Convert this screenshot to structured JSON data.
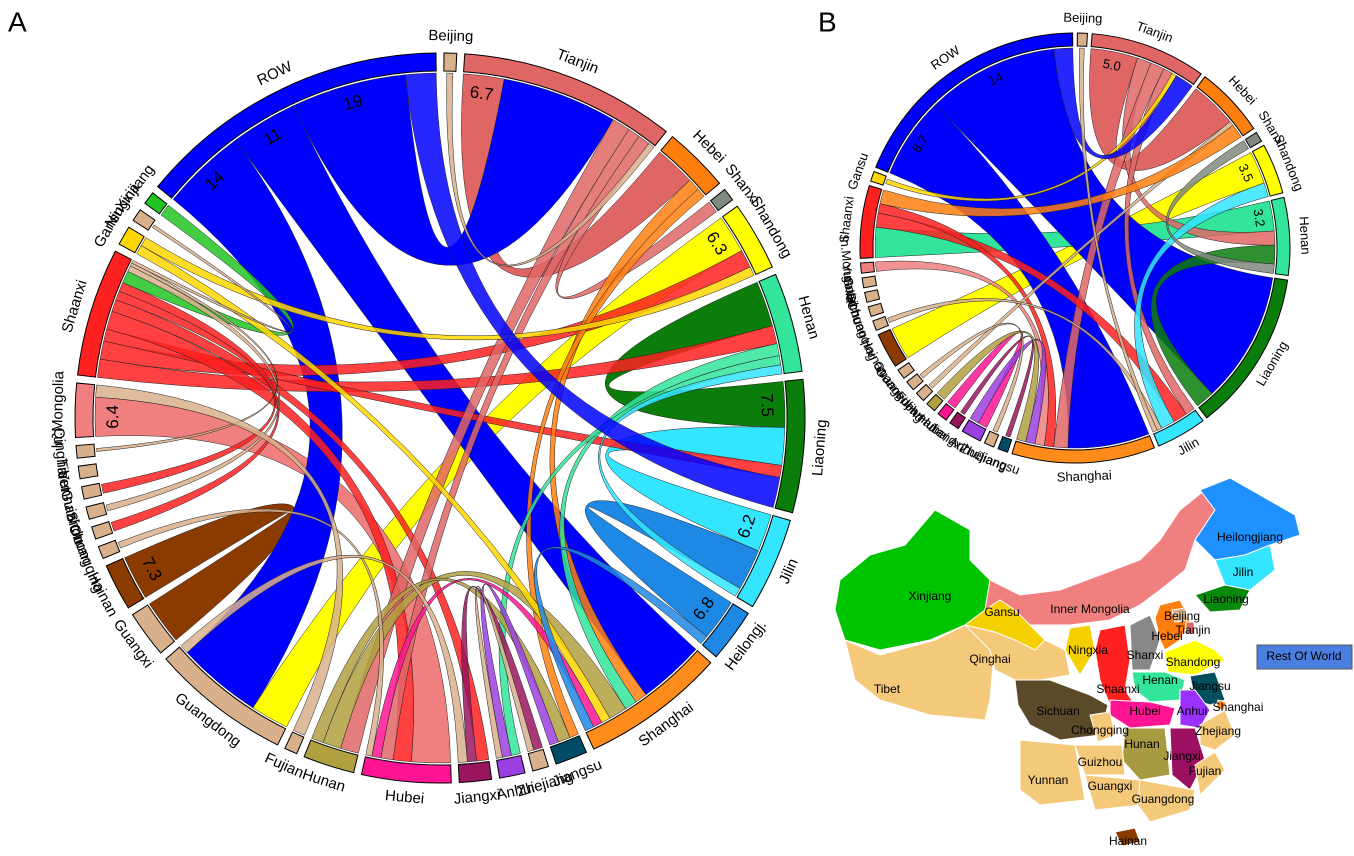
{
  "chart_data": [
    {
      "type": "chord",
      "label": "A",
      "segments": [
        {
          "name": "Beijing",
          "color": "#d9b08c"
        },
        {
          "name": "Tianjin",
          "color": "#e06666"
        },
        {
          "name": "Hebei",
          "color": "#ff7f0e"
        },
        {
          "name": "Shanxi",
          "color": "#808a80"
        },
        {
          "name": "Shandong",
          "color": "#ffff00"
        },
        {
          "name": "Henan",
          "color": "#33e59a"
        },
        {
          "name": "Liaoning",
          "color": "#0a7d0a"
        },
        {
          "name": "Jilin",
          "color": "#33e5ff"
        },
        {
          "name": "Heilongj.",
          "color": "#1e88e5"
        },
        {
          "name": "Shanghai",
          "color": "#ff8c1a"
        },
        {
          "name": "Jiangsu",
          "color": "#004c66"
        },
        {
          "name": "Zhejiang",
          "color": "#d9b08c"
        },
        {
          "name": "Anhui",
          "color": "#9b40e0"
        },
        {
          "name": "Jiangxi",
          "color": "#99155e"
        },
        {
          "name": "Hubei",
          "color": "#ff1493"
        },
        {
          "name": "Hunan",
          "color": "#b0a040"
        },
        {
          "name": "Fujian",
          "color": "#d9b08c"
        },
        {
          "name": "Guangdong",
          "color": "#d9b08c"
        },
        {
          "name": "Guangxi",
          "color": "#d9b08c"
        },
        {
          "name": "Hainan",
          "color": "#8b3a00"
        },
        {
          "name": "Chongqing",
          "color": "#d9b08c"
        },
        {
          "name": "Sichuan",
          "color": "#d9b08c"
        },
        {
          "name": "Guizhou",
          "color": "#d9b08c"
        },
        {
          "name": "Yunnan",
          "color": "#d9b08c"
        },
        {
          "name": "Tibet",
          "color": "#d9b08c"
        },
        {
          "name": "Qinghai",
          "color": "#d9b08c"
        },
        {
          "name": "In.Mongolia",
          "color": "#f08080"
        },
        {
          "name": "Shaanxi",
          "color": "#ff2020"
        },
        {
          "name": "Gansu",
          "color": "#ffd700"
        },
        {
          "name": "Ningxia",
          "color": "#d9b08c"
        },
        {
          "name": "Xinjiang",
          "color": "#22c422"
        },
        {
          "name": "ROW",
          "color": "#0000ff"
        }
      ],
      "labeled_flows": [
        {
          "source": "Tianjin",
          "target": "Hebei",
          "value": 6.7
        },
        {
          "source": "Shandong",
          "target": "Guangdong",
          "value": 6.3
        },
        {
          "source": "Liaoning",
          "target": "Henan",
          "value": 7.5
        },
        {
          "source": "Jilin",
          "target": "Liaoning",
          "value": 6.2
        },
        {
          "source": "Heilongj.",
          "target": "Jilin",
          "value": 6.8
        },
        {
          "source": "Hainan",
          "target": "Guangxi",
          "value": 7.3
        },
        {
          "source": "In.Mongolia",
          "target": "Hubei",
          "value": 6.4
        },
        {
          "source": "ROW",
          "target": "Guangdong",
          "value": 14
        },
        {
          "source": "ROW",
          "target": "Shanghai",
          "value": 11
        },
        {
          "source": "ROW",
          "target": "Tianjin",
          "value": 19
        }
      ],
      "flows": [
        {
          "source": "Shaanxi",
          "target": "Henan",
          "value": 3
        },
        {
          "source": "Shaanxi",
          "target": "Shandong",
          "value": 3
        },
        {
          "source": "Shaanxi",
          "target": "Liaoning",
          "value": 2
        },
        {
          "source": "Shaanxi",
          "target": "Hubei",
          "value": 3
        },
        {
          "source": "Shaanxi",
          "target": "Jiangxi",
          "value": 2
        },
        {
          "source": "Shaanxi",
          "target": "Yunnan",
          "value": 1.5
        },
        {
          "source": "Shaanxi",
          "target": "Sichuan",
          "value": 1.5
        },
        {
          "source": "Tianjin",
          "target": "Hunan",
          "value": 3
        },
        {
          "source": "Tianjin",
          "target": "Hubei",
          "value": 2
        },
        {
          "source": "Tianjin",
          "target": "Shanxi",
          "value": 2
        },
        {
          "source": "Hebei",
          "target": "Shanghai",
          "value": 2
        },
        {
          "source": "Hebei",
          "target": "Jiangsu",
          "value": 1.5
        },
        {
          "source": "Henan",
          "target": "Shanghai",
          "value": 2
        },
        {
          "source": "Henan",
          "target": "Anhui",
          "value": 1.5
        },
        {
          "source": "Hunan",
          "target": "Shanghai",
          "value": 3
        },
        {
          "source": "Hunan",
          "target": "Jiangsu",
          "value": 2
        },
        {
          "source": "Xinjiang",
          "target": "Shaanxi",
          "value": 2
        },
        {
          "source": "Gansu",
          "target": "Shanghai",
          "value": 1.5
        },
        {
          "source": "Gansu",
          "target": "Shandong",
          "value": 1.5
        },
        {
          "source": "Jiangxi",
          "target": "Zhejiang",
          "value": 1.5
        },
        {
          "source": "Anhui",
          "target": "Jiangsu",
          "value": 1.5
        },
        {
          "source": "Hubei",
          "target": "Shanghai",
          "value": 1.5
        },
        {
          "source": "Chongqing",
          "target": "Hubei",
          "value": 1
        },
        {
          "source": "Guizhou",
          "target": "Shaanxi",
          "value": 1
        },
        {
          "source": "Qinghai",
          "target": "Shaanxi",
          "value": 0.5
        },
        {
          "source": "Ningxia",
          "target": "Shaanxi",
          "value": 0.5
        },
        {
          "source": "Beijing",
          "target": "Tianjin",
          "value": 1
        },
        {
          "source": "Fujian",
          "target": "In.Mongolia",
          "value": 2
        },
        {
          "source": "Guangdong",
          "target": "Jiangxi",
          "value": 1.5
        },
        {
          "source": "Zhejiang",
          "target": "Anhui",
          "value": 1
        },
        {
          "source": "Heilongj.",
          "target": "Shanghai",
          "value": 1.5
        },
        {
          "source": "Jilin",
          "target": "Henan",
          "value": 1.5
        },
        {
          "source": "ROW",
          "target": "Liaoning",
          "value": 5
        }
      ]
    },
    {
      "type": "chord",
      "label": "B",
      "segments": [
        {
          "name": "Beijing",
          "color": "#d9b08c"
        },
        {
          "name": "Tianjin",
          "color": "#e06666"
        },
        {
          "name": "Hebei",
          "color": "#ff7f0e"
        },
        {
          "name": "Shanxi",
          "color": "#808a80"
        },
        {
          "name": "Shandong",
          "color": "#ffff00"
        },
        {
          "name": "Henan",
          "color": "#33e59a"
        },
        {
          "name": "Liaoning",
          "color": "#0a7d0a"
        },
        {
          "name": "Jilin",
          "color": "#33e5ff"
        },
        {
          "name": "Shanghai",
          "color": "#ff8c1a"
        },
        {
          "name": "Jiangsu",
          "color": "#004c66"
        },
        {
          "name": "Zhejiang",
          "color": "#d9b08c"
        },
        {
          "name": "Anhui",
          "color": "#9b40e0"
        },
        {
          "name": "Jiangxi",
          "color": "#99155e"
        },
        {
          "name": "Hubei",
          "color": "#ff1493"
        },
        {
          "name": "Hunan",
          "color": "#b0a040"
        },
        {
          "name": "Fujian",
          "color": "#d9b08c"
        },
        {
          "name": "Guangdong",
          "color": "#d9b08c"
        },
        {
          "name": "Guangxi",
          "color": "#d9b08c"
        },
        {
          "name": "Hainan",
          "color": "#8b3a00"
        },
        {
          "name": "Chongqing",
          "color": "#d9b08c"
        },
        {
          "name": "Sichuan",
          "color": "#d9b08c"
        },
        {
          "name": "Guizhou",
          "color": "#d9b08c"
        },
        {
          "name": "Yunnan",
          "color": "#d9b08c"
        },
        {
          "name": "In.Mongolia",
          "color": "#f08080"
        },
        {
          "name": "Shaanxi",
          "color": "#ff2020"
        },
        {
          "name": "Gansu",
          "color": "#ffd700"
        },
        {
          "name": "ROW",
          "color": "#0000ff"
        }
      ],
      "labeled_flows": [
        {
          "source": "Tianjin",
          "target": "Hebei",
          "value": 5,
          "value_label": "5.0"
        },
        {
          "source": "Shandong",
          "target": "Hainan",
          "value": 3.5
        },
        {
          "source": "Henan",
          "target": "Shaanxi",
          "value": 3.2
        },
        {
          "source": "ROW",
          "target": "Shanghai",
          "value": 8.7
        },
        {
          "source": "ROW",
          "target": "Liaoning",
          "value": 14
        }
      ],
      "flows": [
        {
          "source": "Tianjin",
          "target": "Henan",
          "value": 1.5
        },
        {
          "source": "Tianjin",
          "target": "Shanghai",
          "value": 1.5
        },
        {
          "source": "Tianjin",
          "target": "Jilin",
          "value": 1
        },
        {
          "source": "Shaanxi",
          "target": "Jilin",
          "value": 1.5
        },
        {
          "source": "Shaanxi",
          "target": "Shanghai",
          "value": 1
        },
        {
          "source": "In.Mongolia",
          "target": "Shanghai",
          "value": 1
        },
        {
          "source": "Hubei",
          "target": "Anhui",
          "value": 1
        },
        {
          "source": "Anhui",
          "target": "Shanghai",
          "value": 1
        },
        {
          "source": "Jiangxi",
          "target": "Jiangsu",
          "value": 0.5
        },
        {
          "source": "Hunan",
          "target": "Shanghai",
          "value": 1
        },
        {
          "source": "Fujian",
          "target": "Hebei",
          "value": 0.5
        },
        {
          "source": "Liaoning",
          "target": "Henan",
          "value": 2
        },
        {
          "source": "Jilin",
          "target": "Shandong",
          "value": 1.5
        },
        {
          "source": "Shanxi",
          "target": "Henan",
          "value": 1
        },
        {
          "source": "Hebei",
          "target": "Shaanxi",
          "value": 1.5
        },
        {
          "source": "Gansu",
          "target": "Tianjin",
          "value": 0.5
        },
        {
          "source": "Guangdong",
          "target": "Zhejiang",
          "value": 0.5
        },
        {
          "source": "ROW",
          "target": "Tianjin",
          "value": 2
        },
        {
          "source": "Chongqing",
          "target": "Jilin",
          "value": 0.5
        },
        {
          "source": "Beijing",
          "target": "Jilin",
          "value": 0.5
        }
      ]
    }
  ],
  "map": {
    "regions": [
      {
        "name": "Tibet",
        "color": "#f5c97a"
      },
      {
        "name": "Qinghai",
        "color": "#f5c97a"
      },
      {
        "name": "Xinjiang",
        "color": "#00c400"
      },
      {
        "name": "Inner Mongolia",
        "color": "#f08080"
      },
      {
        "name": "Heilongjiang",
        "color": "#1e90ff"
      },
      {
        "name": "Jilin",
        "color": "#33e5ff"
      },
      {
        "name": "Liaoning",
        "color": "#0a8a0a"
      },
      {
        "name": "Gansu",
        "color": "#f5d000"
      },
      {
        "name": "Ningxia",
        "color": "#f5d000"
      },
      {
        "name": "Shaanxi",
        "color": "#ff2020"
      },
      {
        "name": "Shanxi",
        "color": "#888888"
      },
      {
        "name": "Hebei",
        "color": "#ff7f0e"
      },
      {
        "name": "Beijing",
        "color": "#d9b08c"
      },
      {
        "name": "Tianjin",
        "color": "#e06666"
      },
      {
        "name": "Shandong",
        "color": "#ffff00"
      },
      {
        "name": "Henan",
        "color": "#33e59a"
      },
      {
        "name": "Jiangsu",
        "color": "#005060"
      },
      {
        "name": "Anhui",
        "color": "#9b30ff"
      },
      {
        "name": "Shanghai",
        "color": "#ff8c1a"
      },
      {
        "name": "Hubei",
        "color": "#ff1493"
      },
      {
        "name": "Sichuan",
        "color": "#5a4a2a"
      },
      {
        "name": "Chongqing",
        "color": "#f5c97a"
      },
      {
        "name": "Zhejiang",
        "color": "#f5c97a"
      },
      {
        "name": "Hunan",
        "color": "#a89a40"
      },
      {
        "name": "Jiangxi",
        "color": "#9b1060"
      },
      {
        "name": "Fujian",
        "color": "#f5c97a"
      },
      {
        "name": "Guizhou",
        "color": "#f5c97a"
      },
      {
        "name": "Yunnan",
        "color": "#f5c97a"
      },
      {
        "name": "Guangxi",
        "color": "#f5c97a"
      },
      {
        "name": "Guangdong",
        "color": "#f5c97a"
      },
      {
        "name": "Hainan",
        "color": "#8b3a00"
      }
    ],
    "legend": {
      "label": "Rest Of World",
      "color": "#4a7fe0"
    }
  }
}
